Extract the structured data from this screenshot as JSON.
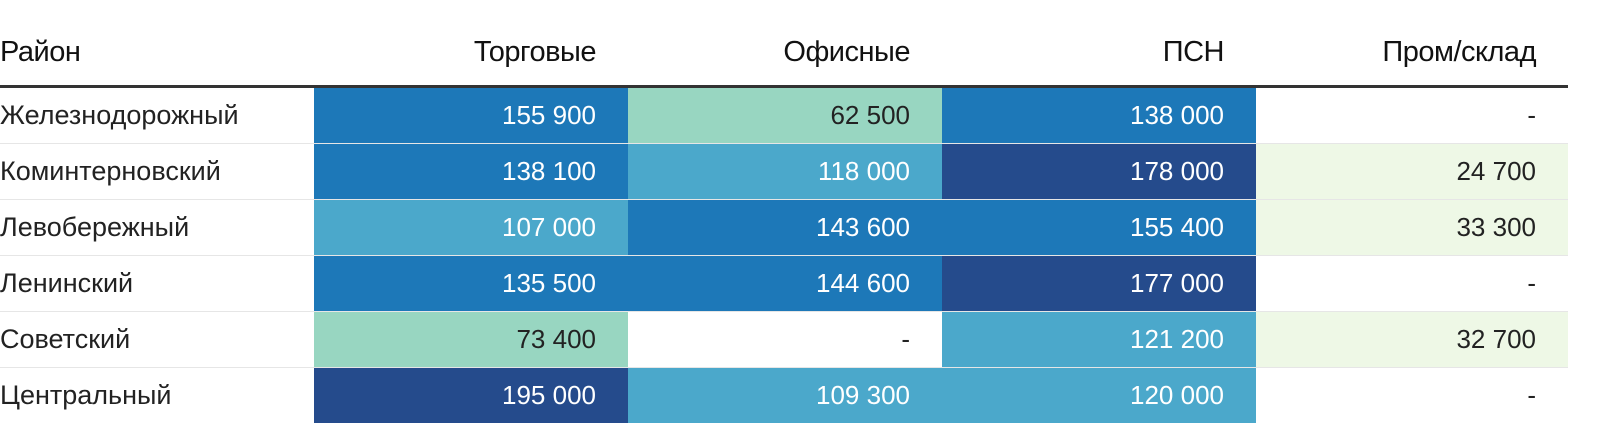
{
  "chart_data": {
    "type": "table",
    "columns": [
      "Район",
      "Торговые",
      "Офисные",
      "ПСН",
      "Пром/склад"
    ],
    "rows": [
      {
        "district": "Железнодорожный",
        "values": [
          "155 900",
          "62 500",
          "138 000",
          "-"
        ],
        "numeric": [
          155900,
          62500,
          138000,
          null
        ]
      },
      {
        "district": "Коминтерновский",
        "values": [
          "138 100",
          "118 000",
          "178 000",
          "24 700"
        ],
        "numeric": [
          138100,
          118000,
          178000,
          24700
        ]
      },
      {
        "district": "Левобережный",
        "values": [
          "107 000",
          "143 600",
          "155 400",
          "33 300"
        ],
        "numeric": [
          107000,
          143600,
          155400,
          33300
        ]
      },
      {
        "district": "Ленинский",
        "values": [
          "135 500",
          "144 600",
          "177 000",
          "-"
        ],
        "numeric": [
          135500,
          144600,
          177000,
          null
        ]
      },
      {
        "district": "Советский",
        "values": [
          "73 400",
          "-",
          "121 200",
          "32 700"
        ],
        "numeric": [
          73400,
          null,
          121200,
          32700
        ]
      },
      {
        "district": "Центральный",
        "values": [
          "195 000",
          "109 300",
          "120 000",
          "-"
        ],
        "numeric": [
          195000,
          109300,
          120000,
          null
        ]
      }
    ],
    "color_scale": {
      "low_fill": "#eef8e6",
      "light_fill": "#98d6c1",
      "mid_fill": "#4ba8cb",
      "high_fill": "#1d78b8",
      "top_fill": "#254b8c",
      "empty_fill": "#ffffff",
      "dark_text": "#222222",
      "light_text": "#ffffff"
    }
  }
}
